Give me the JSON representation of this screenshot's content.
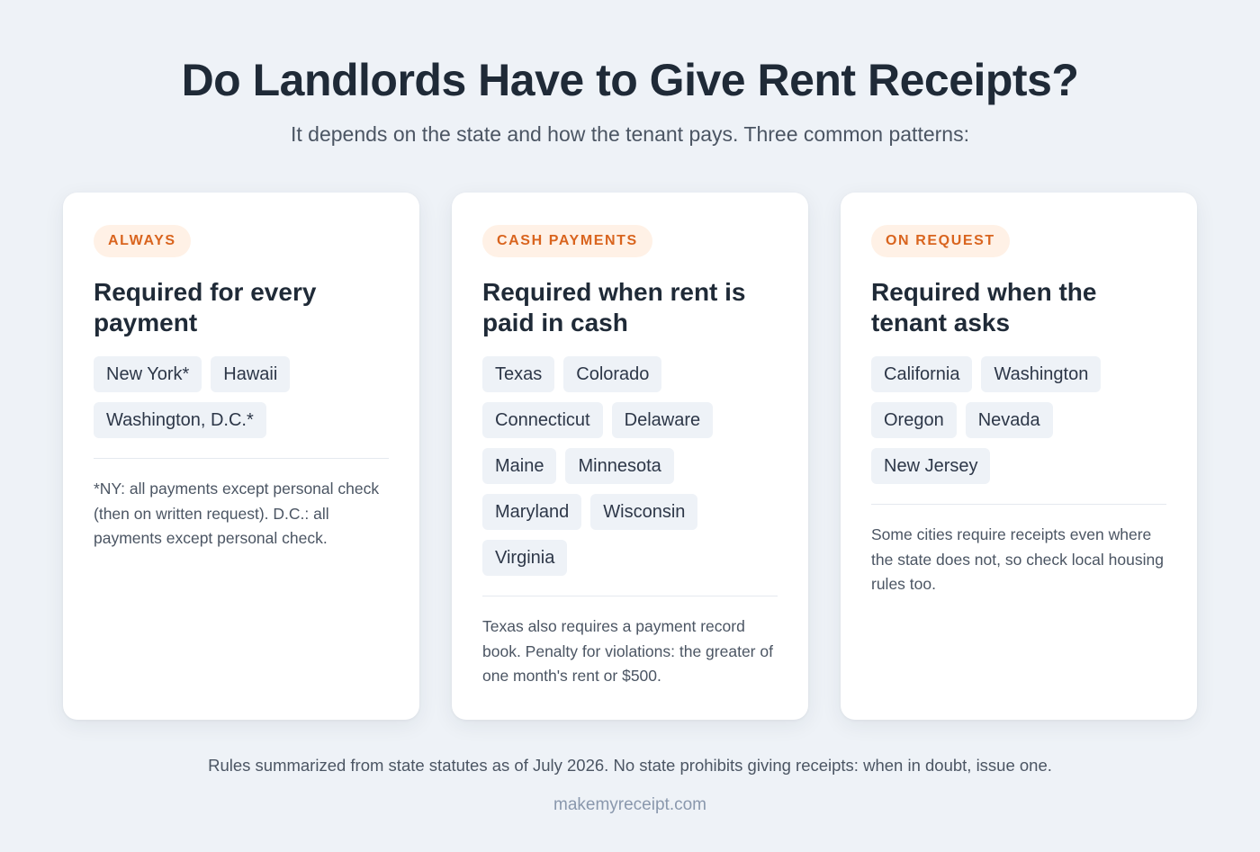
{
  "header": {
    "title": "Do Landlords Have to Give Rent Receipts?",
    "subtitle": "It depends on the state and how the tenant pays. Three common patterns:"
  },
  "accent_color": "#d9641e",
  "cards": [
    {
      "badge": "ALWAYS",
      "heading": "Required for every payment",
      "states": [
        "New York*",
        "Hawaii",
        "Washington, D.C.*"
      ],
      "note": "*NY: all payments except personal check (then on written request). D.C.: all payments except personal check."
    },
    {
      "badge": "CASH PAYMENTS",
      "heading": "Required when rent is paid in cash",
      "states": [
        "Texas",
        "Colorado",
        "Connecticut",
        "Delaware",
        "Maine",
        "Minnesota",
        "Maryland",
        "Wisconsin",
        "Virginia"
      ],
      "note": "Texas also requires a payment record book. Penalty for violations: the greater of one month's rent or $500."
    },
    {
      "badge": "ON REQUEST",
      "heading": "Required when the tenant asks",
      "states": [
        "California",
        "Washington",
        "Oregon",
        "Nevada",
        "New Jersey"
      ],
      "note": "Some cities require receipts even where the state does not, so check local housing rules too."
    }
  ],
  "footer": {
    "footnote": "Rules summarized from state statutes as of July 2026. No state prohibits giving receipts: when in doubt, issue one.",
    "site": "makemyreceipt.com"
  }
}
